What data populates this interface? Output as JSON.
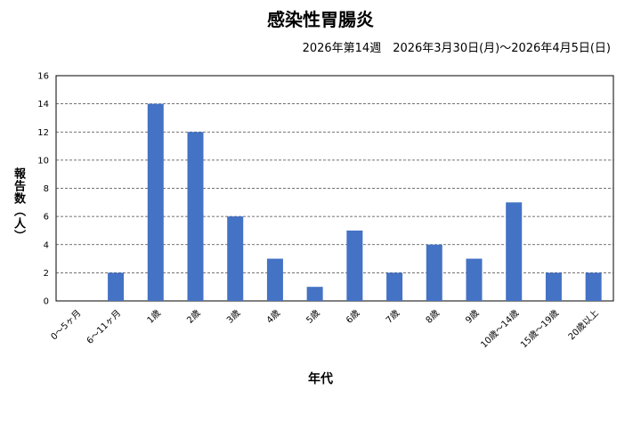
{
  "chart_data": {
    "type": "bar",
    "title": "感染性胃腸炎",
    "subtitle": "2026年第14週　2026年3月30日(月)～2026年4月5日(日)",
    "xlabel": "年代",
    "ylabel": "報告数（人）",
    "categories": [
      "0～5ヶ月",
      "6～11ヶ月",
      "1歳",
      "2歳",
      "3歳",
      "4歳",
      "5歳",
      "6歳",
      "7歳",
      "8歳",
      "9歳",
      "10歳～14歳",
      "15歳～19歳",
      "20歳以上"
    ],
    "values": [
      0,
      2,
      14,
      12,
      6,
      3,
      1,
      5,
      2,
      4,
      3,
      7,
      2,
      2
    ],
    "ylim": [
      0,
      16
    ],
    "yticks": [
      0,
      2,
      4,
      6,
      8,
      10,
      12,
      14,
      16
    ],
    "grid": true,
    "legend": "none",
    "bar_color": "#4472C4"
  }
}
